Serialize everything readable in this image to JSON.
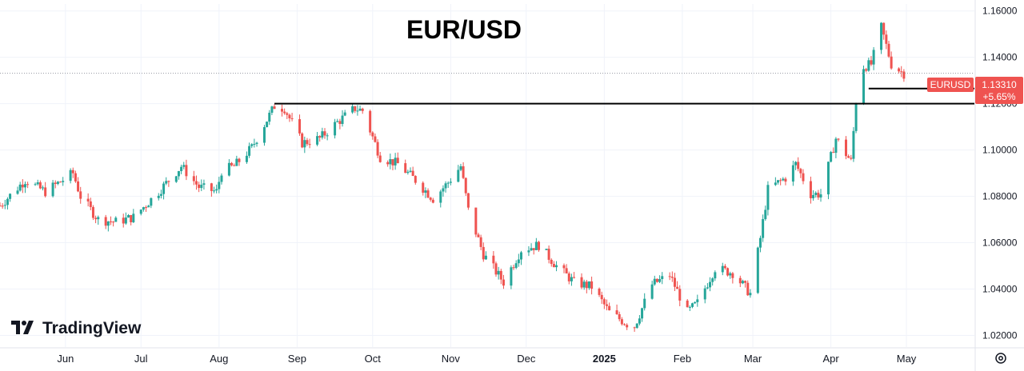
{
  "chart_data": {
    "type": "candlestick",
    "title": "EUR/USD",
    "symbol": "EURUSD",
    "last_price": "1.13310",
    "change_pct": "+5.65%",
    "y_ticks": [
      "1.16000",
      "1.14000",
      "1.12000",
      "1.10000",
      "1.08000",
      "1.06000",
      "1.04000",
      "1.02000"
    ],
    "ylim": [
      1.015,
      1.163
    ],
    "x_ticks": [
      "Jun",
      "Jul",
      "Aug",
      "Sep",
      "Oct",
      "Nov",
      "Dec",
      "2025",
      "Feb",
      "Mar",
      "Apr",
      "May"
    ],
    "xlim": [
      "2024-05-06",
      "2025-05-28"
    ],
    "grid": true,
    "colors": {
      "up": "#26a69a",
      "down": "#ef5350",
      "line": "#000000",
      "badge": "#ef5350"
    },
    "horizontal_lines": [
      {
        "y": 1.12,
        "from": "2024-08-23",
        "to": "2025-05-28"
      },
      {
        "y": 1.1265,
        "from": "2025-04-16",
        "to": "2025-05-28"
      }
    ],
    "close_path": [
      [
        "2024-05-06",
        1.076
      ],
      [
        "2024-05-16",
        1.087
      ],
      [
        "2024-05-24",
        1.082
      ],
      [
        "2024-06-04",
        1.09
      ],
      [
        "2024-06-07",
        1.08
      ],
      [
        "2024-06-14",
        1.07
      ],
      [
        "2024-06-21",
        1.069
      ],
      [
        "2024-06-28",
        1.071
      ],
      [
        "2024-07-08",
        1.082
      ],
      [
        "2024-07-17",
        1.093
      ],
      [
        "2024-07-24",
        1.084
      ],
      [
        "2024-07-31",
        1.082
      ],
      [
        "2024-08-02",
        1.091
      ],
      [
        "2024-08-07",
        1.093
      ],
      [
        "2024-08-14",
        1.101
      ],
      [
        "2024-08-20",
        1.113
      ],
      [
        "2024-08-23",
        1.119
      ],
      [
        "2024-08-27",
        1.118
      ],
      [
        "2024-09-03",
        1.103
      ],
      [
        "2024-09-10",
        1.105
      ],
      [
        "2024-09-17",
        1.112
      ],
      [
        "2024-09-24",
        1.118
      ],
      [
        "2024-09-27",
        1.117
      ],
      [
        "2024-10-04",
        1.097
      ],
      [
        "2024-10-11",
        1.094
      ],
      [
        "2024-10-18",
        1.087
      ],
      [
        "2024-10-25",
        1.079
      ],
      [
        "2024-10-31",
        1.086
      ],
      [
        "2024-11-05",
        1.093
      ],
      [
        "2024-11-08",
        1.074
      ],
      [
        "2024-11-14",
        1.055
      ],
      [
        "2024-11-22",
        1.043
      ],
      [
        "2024-11-29",
        1.057
      ],
      [
        "2024-12-06",
        1.059
      ],
      [
        "2024-12-13",
        1.05
      ],
      [
        "2024-12-20",
        1.043
      ],
      [
        "2024-12-27",
        1.041
      ],
      [
        "2025-01-03",
        1.03
      ],
      [
        "2025-01-10",
        1.025
      ],
      [
        "2025-01-13",
        1.024
      ],
      [
        "2025-01-20",
        1.042
      ],
      [
        "2025-01-27",
        1.046
      ],
      [
        "2025-02-03",
        1.03
      ],
      [
        "2025-02-07",
        1.034
      ],
      [
        "2025-02-14",
        1.049
      ],
      [
        "2025-02-21",
        1.047
      ],
      [
        "2025-02-28",
        1.038
      ],
      [
        "2025-03-04",
        1.062
      ],
      [
        "2025-03-07",
        1.083
      ],
      [
        "2025-03-14",
        1.088
      ],
      [
        "2025-03-18",
        1.094
      ],
      [
        "2025-03-24",
        1.081
      ],
      [
        "2025-03-28",
        1.081
      ],
      [
        "2025-04-03",
        1.105
      ],
      [
        "2025-04-09",
        1.095
      ],
      [
        "2025-04-11",
        1.121
      ],
      [
        "2025-04-14",
        1.136
      ],
      [
        "2025-04-17",
        1.137
      ],
      [
        "2025-04-21",
        1.153
      ],
      [
        "2025-04-25",
        1.137
      ],
      [
        "2025-04-30",
        1.133
      ]
    ]
  },
  "branding": {
    "logo_text": "TradingView"
  },
  "icons": {
    "settings": "gear-icon",
    "logo": "tradingview-logo-icon"
  }
}
